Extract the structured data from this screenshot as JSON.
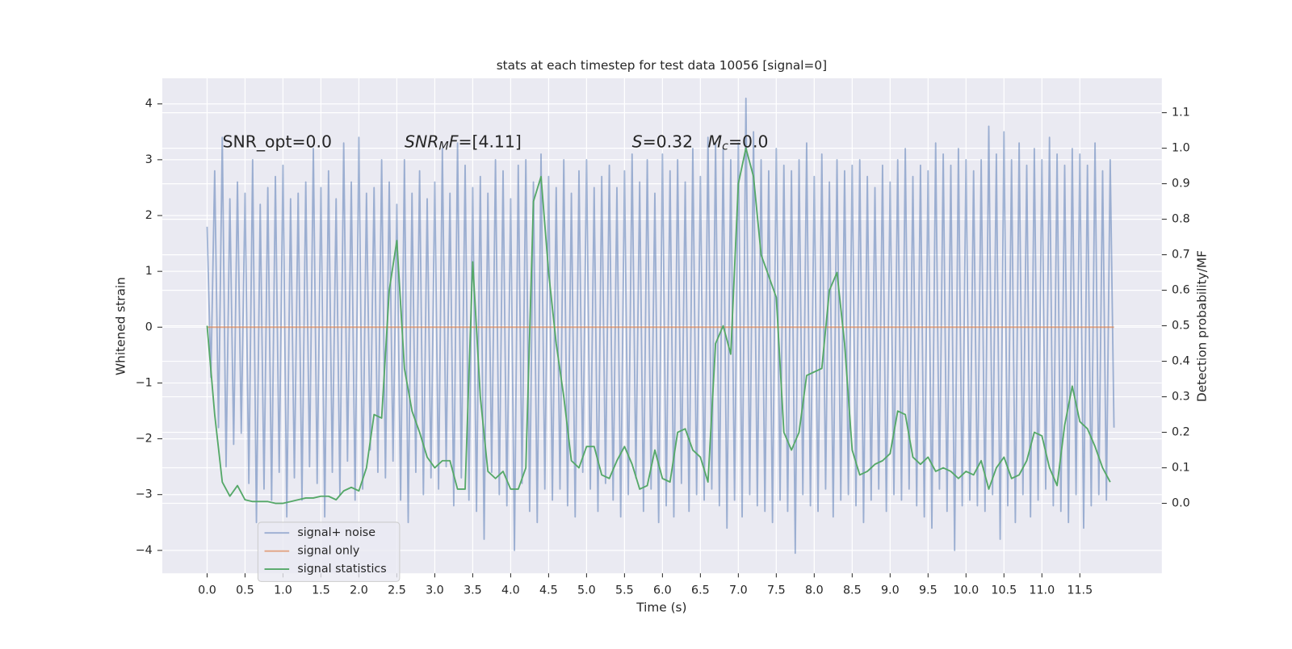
{
  "chart_data": {
    "type": "line",
    "title": "stats at each timestep for test data 10056 [signal=0]",
    "xlabel": "Time (s)",
    "ylabel": "Whitened strain",
    "y2label": "Detection probability/MF",
    "grid": true,
    "legend": "lower left",
    "background": "#eaeaf2",
    "xlim": [
      -0.59,
      12.58
    ],
    "ylim": [
      -4.41,
      4.46
    ],
    "y2lim": [
      -0.197,
      1.197
    ],
    "xticks": [
      {
        "value": 0,
        "label": "0.0"
      },
      {
        "value": 0.5,
        "label": "0.5"
      },
      {
        "value": 1,
        "label": "1.0"
      },
      {
        "value": 1.5,
        "label": "1.5"
      },
      {
        "value": 2,
        "label": "2.0"
      },
      {
        "value": 2.5,
        "label": "2.5"
      },
      {
        "value": 3,
        "label": "3.0"
      },
      {
        "value": 3.5,
        "label": "3.5"
      },
      {
        "value": 4,
        "label": "4.0"
      },
      {
        "value": 4.5,
        "label": "4.5"
      },
      {
        "value": 5,
        "label": "5.0"
      },
      {
        "value": 5.5,
        "label": "5.5"
      },
      {
        "value": 6,
        "label": "6.0"
      },
      {
        "value": 6.5,
        "label": "6.5"
      },
      {
        "value": 7,
        "label": "7.0"
      },
      {
        "value": 7.5,
        "label": "7.5"
      },
      {
        "value": 8,
        "label": "8.0"
      },
      {
        "value": 8.5,
        "label": "8.5"
      },
      {
        "value": 9,
        "label": "9.0"
      },
      {
        "value": 9.5,
        "label": "9.5"
      },
      {
        "value": 10,
        "label": "10.0"
      },
      {
        "value": 10.5,
        "label": "10.5"
      },
      {
        "value": 11,
        "label": "11.0"
      },
      {
        "value": 11.5,
        "label": "11.5"
      }
    ],
    "yticks": [
      {
        "value": -4,
        "label": "−4"
      },
      {
        "value": -3,
        "label": "−3"
      },
      {
        "value": -2,
        "label": "−2"
      },
      {
        "value": -1,
        "label": "−1"
      },
      0,
      1,
      2,
      3,
      4
    ],
    "y2ticks": [
      {
        "value": 0,
        "label": "0.0"
      },
      {
        "value": 0.1,
        "label": "0.1"
      },
      {
        "value": 0.2,
        "label": "0.2"
      },
      {
        "value": 0.3,
        "label": "0.3"
      },
      {
        "value": 0.4,
        "label": "0.4"
      },
      {
        "value": 0.5,
        "label": "0.5"
      },
      {
        "value": 0.6,
        "label": "0.6"
      },
      {
        "value": 0.7,
        "label": "0.7"
      },
      {
        "value": 0.8,
        "label": "0.8"
      },
      {
        "value": 0.9,
        "label": "0.9"
      },
      {
        "value": 1,
        "label": "1.0"
      },
      {
        "value": 1.1,
        "label": "1.1"
      }
    ],
    "annotations": [
      {
        "parts": [
          {
            "text": "SNR_opt=0.0",
            "style": "normal"
          }
        ]
      },
      {
        "parts": [
          {
            "text": "SNR",
            "style": "italic"
          },
          {
            "text": "M",
            "style": "italic-sub"
          },
          {
            "text": "F",
            "style": "italic"
          },
          {
            "text": "=[4.11]",
            "style": "normal"
          }
        ]
      },
      {
        "parts": [
          {
            "text": "S",
            "style": "italic"
          },
          {
            "text": "=0.32",
            "style": "normal"
          }
        ]
      },
      {
        "parts": [
          {
            "text": "M",
            "style": "italic"
          },
          {
            "text": "c",
            "style": "italic-sub"
          },
          {
            "text": "=0.0",
            "style": "normal"
          }
        ]
      }
    ],
    "series": [
      {
        "name": "signal+ noise",
        "color": "#4c72b0",
        "opacity": 0.5,
        "axis": "y",
        "x": [
          0,
          0.05,
          0.1,
          0.15,
          0.2,
          0.25,
          0.3,
          0.35,
          0.4,
          0.45,
          0.5,
          0.55,
          0.6,
          0.65,
          0.7,
          0.75,
          0.8,
          0.85,
          0.9,
          0.95,
          1,
          1.05,
          1.1,
          1.15,
          1.2,
          1.25,
          1.3,
          1.35,
          1.4,
          1.45,
          1.5,
          1.55,
          1.6,
          1.65,
          1.7,
          1.75,
          1.8,
          1.85,
          1.9,
          1.95,
          2,
          2.05,
          2.1,
          2.15,
          2.2,
          2.25,
          2.3,
          2.35,
          2.4,
          2.45,
          2.5,
          2.55,
          2.6,
          2.65,
          2.7,
          2.75,
          2.8,
          2.85,
          2.9,
          2.95,
          3,
          3.05,
          3.1,
          3.15,
          3.2,
          3.25,
          3.3,
          3.35,
          3.4,
          3.45,
          3.5,
          3.55,
          3.6,
          3.65,
          3.7,
          3.75,
          3.8,
          3.85,
          3.9,
          3.95,
          4,
          4.05,
          4.1,
          4.15,
          4.2,
          4.25,
          4.3,
          4.35,
          4.4,
          4.45,
          4.5,
          4.55,
          4.6,
          4.65,
          4.7,
          4.75,
          4.8,
          4.85,
          4.9,
          4.95,
          5,
          5.05,
          5.1,
          5.15,
          5.2,
          5.25,
          5.3,
          5.35,
          5.4,
          5.45,
          5.5,
          5.55,
          5.6,
          5.65,
          5.7,
          5.75,
          5.8,
          5.85,
          5.9,
          5.95,
          6,
          6.05,
          6.1,
          6.15,
          6.2,
          6.25,
          6.3,
          6.35,
          6.4,
          6.45,
          6.5,
          6.55,
          6.6,
          6.65,
          6.7,
          6.75,
          6.8,
          6.85,
          6.9,
          6.95,
          7,
          7.05,
          7.1,
          7.15,
          7.2,
          7.25,
          7.3,
          7.35,
          7.4,
          7.45,
          7.5,
          7.55,
          7.6,
          7.65,
          7.7,
          7.75,
          7.8,
          7.85,
          7.9,
          7.95,
          8,
          8.05,
          8.1,
          8.15,
          8.2,
          8.25,
          8.3,
          8.35,
          8.4,
          8.45,
          8.5,
          8.55,
          8.6,
          8.65,
          8.7,
          8.75,
          8.8,
          8.85,
          8.9,
          8.95,
          9,
          9.05,
          9.1,
          9.15,
          9.2,
          9.25,
          9.3,
          9.35,
          9.4,
          9.45,
          9.5,
          9.55,
          9.6,
          9.65,
          9.7,
          9.75,
          9.8,
          9.85,
          9.9,
          9.95,
          10,
          10.05,
          10.1,
          10.15,
          10.2,
          10.25,
          10.3,
          10.35,
          10.4,
          10.45,
          10.5,
          10.55,
          10.6,
          10.65,
          10.7,
          10.75,
          10.8,
          10.85,
          10.9,
          10.95,
          11,
          11.05,
          11.1,
          11.15,
          11.2,
          11.25,
          11.3,
          11.35,
          11.4,
          11.45,
          11.5,
          11.55,
          11.6,
          11.65,
          11.7,
          11.75,
          11.8,
          11.85,
          11.9,
          11.95
        ],
        "values": [
          1.8,
          -0.9,
          2.8,
          -1.8,
          3.4,
          -2.5,
          2.3,
          -2.1,
          2.6,
          -1.9,
          2.4,
          -2.8,
          3.0,
          -3.5,
          2.2,
          -2.9,
          2.5,
          -3.1,
          2.7,
          -2.6,
          2.9,
          -3.4,
          2.3,
          -2.7,
          2.4,
          -3.1,
          2.6,
          -2.5,
          3.2,
          -2.8,
          2.5,
          -3.4,
          2.8,
          -2.6,
          2.3,
          -3.0,
          3.3,
          -2.4,
          2.6,
          -3.1,
          3.4,
          -2.9,
          2.4,
          -2.2,
          2.5,
          -2.6,
          3.0,
          -2.7,
          2.6,
          -2.4,
          2.2,
          -3.1,
          3.0,
          -3.5,
          2.4,
          -2.6,
          2.8,
          -3.0,
          2.3,
          -2.7,
          2.6,
          -2.9,
          3.2,
          -2.5,
          2.4,
          -3.2,
          3.3,
          -2.7,
          2.9,
          -3.1,
          2.5,
          -3.3,
          2.7,
          -3.8,
          2.4,
          -2.6,
          3.0,
          -3.0,
          2.8,
          -3.2,
          2.3,
          -4.0,
          2.9,
          -2.8,
          3.0,
          -3.3,
          2.6,
          -3.5,
          3.1,
          -2.9,
          2.7,
          -3.1,
          2.5,
          -2.9,
          3.0,
          -3.2,
          2.4,
          -3.4,
          2.8,
          -2.6,
          3.0,
          -2.9,
          2.5,
          -3.3,
          2.7,
          -2.8,
          2.9,
          -3.1,
          2.5,
          -3.4,
          2.8,
          -3.0,
          3.1,
          -2.7,
          2.6,
          -3.3,
          3.0,
          -2.9,
          2.4,
          -3.5,
          3.1,
          -3.2,
          2.8,
          -3.4,
          3.0,
          -2.8,
          2.6,
          -3.3,
          3.2,
          -3.0,
          2.7,
          -3.1,
          3.4,
          -2.9,
          3.3,
          -3.2,
          3.2,
          -3.6,
          3.0,
          -3.1,
          3.3,
          -3.4,
          4.1,
          -3.0,
          3.5,
          -3.2,
          3.0,
          -3.3,
          2.8,
          -3.5,
          3.2,
          -3.1,
          2.9,
          -3.3,
          2.8,
          -4.05,
          3.0,
          -3.0,
          3.3,
          -3.2,
          2.7,
          -3.3,
          3.1,
          -2.9,
          2.6,
          -3.4,
          3.0,
          -3.1,
          2.8,
          -3.0,
          2.9,
          -3.2,
          3.0,
          -3.5,
          2.7,
          -3.1,
          2.5,
          -2.9,
          2.9,
          -3.3,
          2.6,
          -3.0,
          3.0,
          -3.1,
          3.2,
          -2.9,
          2.7,
          -3.2,
          2.9,
          -3.4,
          2.8,
          -3.6,
          3.3,
          -2.9,
          3.1,
          -3.3,
          2.9,
          -4.0,
          3.2,
          -3.2,
          3.0,
          -3.1,
          2.8,
          -3.2,
          3.0,
          -3.3,
          3.6,
          -3.0,
          3.1,
          -3.8,
          3.5,
          -3.2,
          3.0,
          -3.5,
          3.3,
          -3.0,
          2.9,
          -3.4,
          3.2,
          -3.1,
          3.0,
          -2.9,
          3.4,
          -3.2,
          3.1,
          -3.3,
          2.9,
          -3.5,
          3.2,
          -3.0,
          3.1,
          -3.6,
          2.9,
          -3.2,
          3.3,
          -3.0,
          2.8,
          -3.1,
          3.0,
          -1.8
        ]
      },
      {
        "name": "signal only",
        "color": "#dd8452",
        "opacity": 0.7,
        "axis": "y",
        "x": [
          0,
          11.95
        ],
        "values": [
          0,
          0
        ]
      },
      {
        "name": "signal statistics",
        "color": "#55a868",
        "opacity": 1,
        "axis": "y2",
        "x": [
          0,
          0.1,
          0.2,
          0.3,
          0.4,
          0.5,
          0.6,
          0.7,
          0.8,
          0.9,
          1,
          1.1,
          1.2,
          1.3,
          1.4,
          1.5,
          1.6,
          1.7,
          1.8,
          1.9,
          2,
          2.1,
          2.2,
          2.3,
          2.4,
          2.5,
          2.6,
          2.7,
          2.8,
          2.9,
          3,
          3.1,
          3.2,
          3.3,
          3.4,
          3.5,
          3.6,
          3.7,
          3.8,
          3.9,
          4,
          4.1,
          4.2,
          4.3,
          4.4,
          4.5,
          4.6,
          4.7,
          4.8,
          4.9,
          5,
          5.1,
          5.2,
          5.3,
          5.4,
          5.5,
          5.6,
          5.7,
          5.8,
          5.9,
          6,
          6.1,
          6.2,
          6.3,
          6.4,
          6.5,
          6.6,
          6.7,
          6.8,
          6.9,
          7,
          7.1,
          7.2,
          7.3,
          7.4,
          7.5,
          7.6,
          7.7,
          7.8,
          7.9,
          8,
          8.1,
          8.2,
          8.3,
          8.4,
          8.5,
          8.6,
          8.7,
          8.8,
          8.9,
          9,
          9.1,
          9.2,
          9.3,
          9.4,
          9.5,
          9.6,
          9.7,
          9.8,
          9.9,
          10,
          10.1,
          10.2,
          10.3,
          10.4,
          10.5,
          10.6,
          10.7,
          10.8,
          10.9,
          11,
          11.1,
          11.2,
          11.3,
          11.4,
          11.5,
          11.6,
          11.7,
          11.8,
          11.9
        ],
        "values": [
          0.5,
          0.25,
          0.06,
          0.02,
          0.05,
          0.01,
          0.005,
          0.005,
          0.005,
          0,
          0,
          0.005,
          0.01,
          0.015,
          0.015,
          0.02,
          0.02,
          0.01,
          0.035,
          0.045,
          0.035,
          0.1,
          0.25,
          0.24,
          0.6,
          0.74,
          0.38,
          0.26,
          0.2,
          0.13,
          0.1,
          0.12,
          0.12,
          0.04,
          0.04,
          0.68,
          0.3,
          0.09,
          0.07,
          0.09,
          0.04,
          0.04,
          0.1,
          0.85,
          0.92,
          0.65,
          0.45,
          0.3,
          0.12,
          0.1,
          0.16,
          0.16,
          0.08,
          0.07,
          0.12,
          0.16,
          0.11,
          0.04,
          0.05,
          0.15,
          0.07,
          0.06,
          0.2,
          0.21,
          0.15,
          0.13,
          0.06,
          0.45,
          0.5,
          0.42,
          0.9,
          1.0,
          0.92,
          0.7,
          0.64,
          0.58,
          0.2,
          0.15,
          0.2,
          0.36,
          0.37,
          0.38,
          0.6,
          0.65,
          0.45,
          0.15,
          0.08,
          0.09,
          0.11,
          0.12,
          0.14,
          0.26,
          0.25,
          0.13,
          0.11,
          0.13,
          0.09,
          0.1,
          0.09,
          0.07,
          0.09,
          0.08,
          0.12,
          0.04,
          0.1,
          0.13,
          0.07,
          0.08,
          0.12,
          0.2,
          0.19,
          0.1,
          0.05,
          0.22,
          0.33,
          0.23,
          0.21,
          0.16,
          0.1,
          0.06
        ]
      }
    ]
  }
}
